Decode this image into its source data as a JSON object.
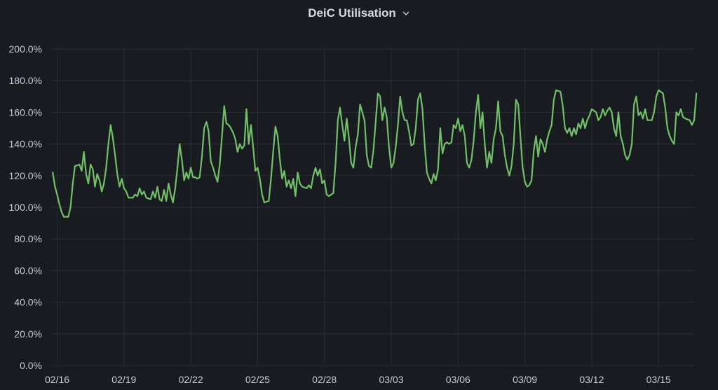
{
  "panel": {
    "title": "DeiC Utilisation",
    "menu_icon": "chevron-down-icon"
  },
  "chart_data": {
    "type": "line",
    "title": "DeiC Utilisation",
    "xlabel": "",
    "ylabel": "",
    "ylim": [
      0,
      200
    ],
    "y_ticks": [
      "0.0%",
      "20.0%",
      "40.0%",
      "60.0%",
      "80.0%",
      "100.0%",
      "120.0%",
      "140.0%",
      "160.0%",
      "180.0%",
      "200.0%"
    ],
    "x_ticks": [
      "02/16",
      "02/19",
      "02/22",
      "02/25",
      "02/28",
      "03/03",
      "03/06",
      "03/09",
      "03/12",
      "03/15"
    ],
    "x_range_days": [
      -0.3,
      28.6
    ],
    "grid": true,
    "legend": "none",
    "line_color": "#73bf69",
    "series": [
      {
        "values": [
          [
            -0.2,
            122
          ],
          [
            -0.1,
            113
          ],
          [
            0.0,
            108
          ],
          [
            0.1,
            102
          ],
          [
            0.2,
            97
          ],
          [
            0.3,
            94
          ],
          [
            0.5,
            94
          ],
          [
            0.6,
            100
          ],
          [
            0.7,
            115
          ],
          [
            0.8,
            126
          ],
          [
            1.0,
            127
          ],
          [
            1.1,
            123
          ],
          [
            1.2,
            135
          ],
          [
            1.3,
            121
          ],
          [
            1.4,
            115
          ],
          [
            1.5,
            127
          ],
          [
            1.6,
            124
          ],
          [
            1.7,
            113
          ],
          [
            1.8,
            121
          ],
          [
            1.9,
            117
          ],
          [
            2.0,
            110
          ],
          [
            2.1,
            115
          ],
          [
            2.2,
            125
          ],
          [
            2.3,
            140
          ],
          [
            2.4,
            152
          ],
          [
            2.5,
            144
          ],
          [
            2.6,
            133
          ],
          [
            2.7,
            121
          ],
          [
            2.8,
            113
          ],
          [
            2.9,
            118
          ],
          [
            3.0,
            112
          ],
          [
            3.1,
            110
          ],
          [
            3.2,
            106
          ],
          [
            3.4,
            106
          ],
          [
            3.5,
            108
          ],
          [
            3.6,
            107
          ],
          [
            3.7,
            112
          ],
          [
            3.8,
            108
          ],
          [
            3.9,
            110
          ],
          [
            4.0,
            106
          ],
          [
            4.2,
            105
          ],
          [
            4.3,
            110
          ],
          [
            4.4,
            106
          ],
          [
            4.5,
            113
          ],
          [
            4.6,
            105
          ],
          [
            4.7,
            104
          ],
          [
            4.8,
            111
          ],
          [
            4.9,
            104
          ],
          [
            5.0,
            115
          ],
          [
            5.1,
            108
          ],
          [
            5.2,
            103
          ],
          [
            5.3,
            112
          ],
          [
            5.4,
            125
          ],
          [
            5.5,
            140
          ],
          [
            5.6,
            130
          ],
          [
            5.7,
            117
          ],
          [
            5.8,
            122
          ],
          [
            5.9,
            118
          ],
          [
            6.0,
            125
          ],
          [
            6.1,
            119
          ],
          [
            6.2,
            119
          ],
          [
            6.3,
            118
          ],
          [
            6.4,
            119
          ],
          [
            6.5,
            132
          ],
          [
            6.6,
            150
          ],
          [
            6.7,
            154
          ],
          [
            6.8,
            148
          ],
          [
            6.9,
            129
          ],
          [
            7.0,
            125
          ],
          [
            7.1,
            120
          ],
          [
            7.2,
            116
          ],
          [
            7.3,
            127
          ],
          [
            7.4,
            145
          ],
          [
            7.5,
            164
          ],
          [
            7.6,
            153
          ],
          [
            7.7,
            152
          ],
          [
            7.8,
            150
          ],
          [
            7.9,
            147
          ],
          [
            8.0,
            143
          ],
          [
            8.1,
            135
          ],
          [
            8.2,
            140
          ],
          [
            8.3,
            137
          ],
          [
            8.4,
            139
          ],
          [
            8.5,
            162
          ],
          [
            8.6,
            140
          ],
          [
            8.7,
            152
          ],
          [
            8.8,
            138
          ],
          [
            8.9,
            123
          ],
          [
            9.0,
            125
          ],
          [
            9.1,
            118
          ],
          [
            9.2,
            108
          ],
          [
            9.3,
            103
          ],
          [
            9.5,
            104
          ],
          [
            9.6,
            118
          ],
          [
            9.7,
            135
          ],
          [
            9.8,
            151
          ],
          [
            9.9,
            145
          ],
          [
            10.0,
            130
          ],
          [
            10.1,
            118
          ],
          [
            10.2,
            123
          ],
          [
            10.3,
            113
          ],
          [
            10.4,
            117
          ],
          [
            10.5,
            112
          ],
          [
            10.6,
            118
          ],
          [
            10.7,
            107
          ],
          [
            10.8,
            122
          ],
          [
            10.9,
            115
          ],
          [
            11.0,
            113
          ],
          [
            11.2,
            112
          ],
          [
            11.3,
            114
          ],
          [
            11.4,
            112
          ],
          [
            11.5,
            120
          ],
          [
            11.6,
            125
          ],
          [
            11.7,
            120
          ],
          [
            11.8,
            124
          ],
          [
            11.9,
            115
          ],
          [
            12.0,
            117
          ],
          [
            12.1,
            108
          ],
          [
            12.2,
            107
          ],
          [
            12.4,
            109
          ],
          [
            12.5,
            128
          ],
          [
            12.6,
            155
          ],
          [
            12.7,
            163
          ],
          [
            12.8,
            152
          ],
          [
            12.9,
            142
          ],
          [
            13.0,
            156
          ],
          [
            13.1,
            144
          ],
          [
            13.2,
            128
          ],
          [
            13.3,
            125
          ],
          [
            13.4,
            138
          ],
          [
            13.5,
            146
          ],
          [
            13.6,
            165
          ],
          [
            13.7,
            160
          ],
          [
            13.8,
            155
          ],
          [
            13.9,
            133
          ],
          [
            14.0,
            126
          ],
          [
            14.1,
            125
          ],
          [
            14.2,
            136
          ],
          [
            14.3,
            154
          ],
          [
            14.4,
            172
          ],
          [
            14.5,
            170
          ],
          [
            14.6,
            155
          ],
          [
            14.7,
            163
          ],
          [
            14.8,
            157
          ],
          [
            14.9,
            138
          ],
          [
            15.0,
            125
          ],
          [
            15.1,
            128
          ],
          [
            15.2,
            138
          ],
          [
            15.3,
            152
          ],
          [
            15.4,
            170
          ],
          [
            15.5,
            160
          ],
          [
            15.6,
            155
          ],
          [
            15.7,
            155
          ],
          [
            15.8,
            148
          ],
          [
            15.9,
            139
          ],
          [
            16.0,
            140
          ],
          [
            16.1,
            150
          ],
          [
            16.2,
            168
          ],
          [
            16.3,
            172
          ],
          [
            16.4,
            162
          ],
          [
            16.5,
            140
          ],
          [
            16.6,
            122
          ],
          [
            16.7,
            118
          ],
          [
            16.8,
            115
          ],
          [
            16.9,
            121
          ],
          [
            17.0,
            117
          ],
          [
            17.1,
            124
          ],
          [
            17.2,
            150
          ],
          [
            17.3,
            134
          ],
          [
            17.4,
            140
          ],
          [
            17.5,
            141
          ],
          [
            17.6,
            140
          ],
          [
            17.7,
            141
          ],
          [
            17.8,
            152
          ],
          [
            17.9,
            150
          ],
          [
            18.0,
            156
          ],
          [
            18.1,
            148
          ],
          [
            18.2,
            152
          ],
          [
            18.3,
            145
          ],
          [
            18.4,
            128
          ],
          [
            18.5,
            125
          ],
          [
            18.6,
            130
          ],
          [
            18.7,
            142
          ],
          [
            18.8,
            160
          ],
          [
            18.9,
            171
          ],
          [
            19.0,
            150
          ],
          [
            19.1,
            160
          ],
          [
            19.2,
            140
          ],
          [
            19.3,
            125
          ],
          [
            19.4,
            135
          ],
          [
            19.5,
            128
          ],
          [
            19.6,
            143
          ],
          [
            19.7,
            150
          ],
          [
            19.8,
            167
          ],
          [
            19.9,
            148
          ],
          [
            20.0,
            145
          ],
          [
            20.1,
            133
          ],
          [
            20.2,
            125
          ],
          [
            20.3,
            120
          ],
          [
            20.4,
            126
          ],
          [
            20.5,
            140
          ],
          [
            20.6,
            168
          ],
          [
            20.7,
            165
          ],
          [
            20.8,
            145
          ],
          [
            20.9,
            125
          ],
          [
            21.0,
            116
          ],
          [
            21.1,
            113
          ],
          [
            21.2,
            114
          ],
          [
            21.3,
            117
          ],
          [
            21.4,
            136
          ],
          [
            21.5,
            145
          ],
          [
            21.6,
            132
          ],
          [
            21.7,
            143
          ],
          [
            21.8,
            140
          ],
          [
            21.9,
            135
          ],
          [
            22.0,
            143
          ],
          [
            22.1,
            148
          ],
          [
            22.2,
            152
          ],
          [
            22.3,
            168
          ],
          [
            22.4,
            174
          ],
          [
            22.6,
            173
          ],
          [
            22.7,
            164
          ],
          [
            22.8,
            150
          ],
          [
            22.9,
            147
          ],
          [
            23.0,
            150
          ],
          [
            23.1,
            145
          ],
          [
            23.2,
            150
          ],
          [
            23.3,
            146
          ],
          [
            23.4,
            153
          ],
          [
            23.5,
            150
          ],
          [
            23.6,
            156
          ],
          [
            23.7,
            150
          ],
          [
            23.8,
            155
          ],
          [
            23.9,
            158
          ],
          [
            24.0,
            162
          ],
          [
            24.2,
            160
          ],
          [
            24.3,
            155
          ],
          [
            24.4,
            157
          ],
          [
            24.5,
            162
          ],
          [
            24.6,
            158
          ],
          [
            24.7,
            161
          ],
          [
            24.8,
            163
          ],
          [
            24.9,
            160
          ],
          [
            25.0,
            150
          ],
          [
            25.1,
            145
          ],
          [
            25.2,
            160
          ],
          [
            25.3,
            145
          ],
          [
            25.4,
            140
          ],
          [
            25.5,
            133
          ],
          [
            25.6,
            130
          ],
          [
            25.7,
            133
          ],
          [
            25.8,
            140
          ],
          [
            25.9,
            165
          ],
          [
            26.0,
            170
          ],
          [
            26.1,
            158
          ],
          [
            26.2,
            160
          ],
          [
            26.3,
            156
          ],
          [
            26.4,
            162
          ],
          [
            26.5,
            155
          ],
          [
            26.7,
            155
          ],
          [
            26.8,
            160
          ],
          [
            26.9,
            170
          ],
          [
            27.0,
            174
          ],
          [
            27.2,
            172
          ],
          [
            27.3,
            163
          ],
          [
            27.4,
            150
          ],
          [
            27.5,
            145
          ],
          [
            27.6,
            142
          ],
          [
            27.7,
            140
          ],
          [
            27.8,
            160
          ],
          [
            27.9,
            158
          ],
          [
            28.0,
            162
          ],
          [
            28.1,
            157
          ],
          [
            28.2,
            156
          ],
          [
            28.4,
            155
          ],
          [
            28.5,
            152
          ],
          [
            28.6,
            155
          ],
          [
            28.7,
            172
          ]
        ]
      }
    ]
  }
}
